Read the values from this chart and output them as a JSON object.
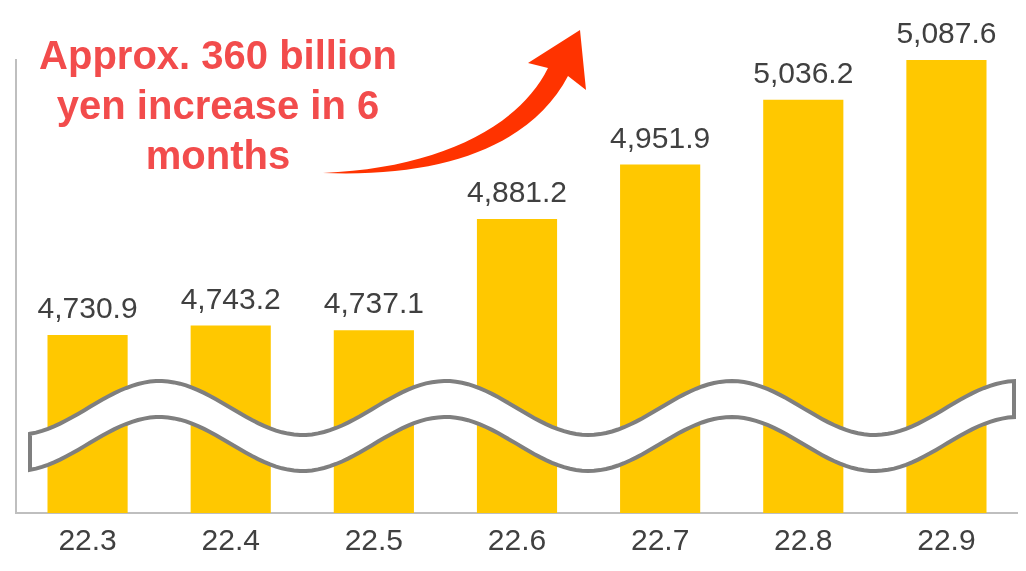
{
  "chart_data": {
    "type": "bar",
    "categories": [
      "22.3",
      "22.4",
      "22.5",
      "22.6",
      "22.7",
      "22.8",
      "22.9"
    ],
    "values": [
      4730.9,
      4743.2,
      4737.1,
      4881.2,
      4951.9,
      5036.2,
      5087.6
    ],
    "color": "#ffc800",
    "value_labels": [
      "4,730.9",
      "4,743.2",
      "4,737.1",
      "4,881.2",
      "4,951.9",
      "5,036.2",
      "5,087.6"
    ],
    "ylim": [
      4500,
      5087.6
    ],
    "tick_labels": "x",
    "grid": false,
    "legend": false,
    "annotations": [
      "Approx. 360 billion yen increase in 6 months"
    ]
  }
}
